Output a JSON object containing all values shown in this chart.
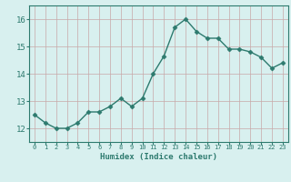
{
  "x": [
    0,
    1,
    2,
    3,
    4,
    5,
    6,
    7,
    8,
    9,
    10,
    11,
    12,
    13,
    14,
    15,
    16,
    17,
    18,
    19,
    20,
    21,
    22,
    23
  ],
  "y": [
    12.5,
    12.2,
    12.0,
    12.0,
    12.2,
    12.6,
    12.6,
    12.8,
    13.1,
    12.8,
    13.1,
    14.0,
    14.65,
    15.7,
    16.0,
    15.55,
    15.3,
    15.3,
    14.9,
    14.9,
    14.8,
    14.6,
    14.2,
    14.4
  ],
  "line_color": "#2d7a6e",
  "marker": "D",
  "marker_size": 2.5,
  "bg_color": "#d8f0ef",
  "grid_color": "#c8a8a8",
  "axis_color": "#2d7a6e",
  "xlabel": "Humidex (Indice chaleur)",
  "ylim": [
    11.5,
    16.5
  ],
  "xlim": [
    -0.5,
    23.5
  ],
  "yticks": [
    12,
    13,
    14,
    15,
    16
  ],
  "xticks": [
    0,
    1,
    2,
    3,
    4,
    5,
    6,
    7,
    8,
    9,
    10,
    11,
    12,
    13,
    14,
    15,
    16,
    17,
    18,
    19,
    20,
    21,
    22,
    23
  ]
}
